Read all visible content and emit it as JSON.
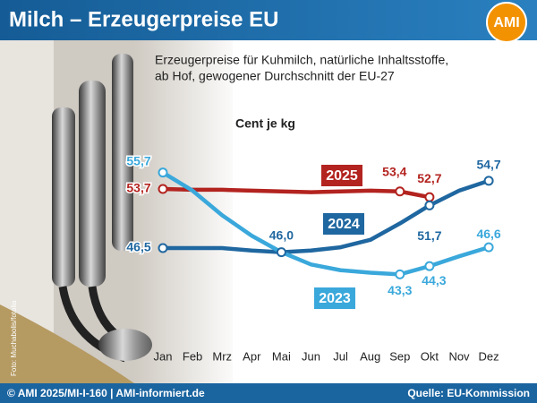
{
  "chart_data": {
    "type": "line",
    "title": "Milch – Erzeugerpreise EU",
    "logo": "AMI",
    "subtitle": [
      "Erzeugerpreise für Kuhmilch, natürliche Inhaltsstoffe,",
      "ab Hof, gewogener Durchschnitt der EU-27"
    ],
    "unit_label": "Cent je kg",
    "photo_credit": "Foto: Muchabolis/fotolia",
    "footer_left": "© AMI 2025/MI-I-160 | AMI-informiert.de",
    "footer_right": "Quelle: EU-Kommission",
    "categories": [
      "Jan",
      "Feb",
      "Mrz",
      "Apr",
      "Mai",
      "Jun",
      "Jul",
      "Aug",
      "Sep",
      "Okt",
      "Nov",
      "Dez"
    ],
    "ylim": [
      40,
      58
    ],
    "series": [
      {
        "name": "2025",
        "color": "#b3231f",
        "values": [
          53.7,
          53.6,
          53.6,
          53.5,
          53.4,
          53.3,
          53.4,
          53.5,
          53.4,
          52.7,
          null,
          null
        ],
        "value_labels": [
          "53,7",
          null,
          null,
          null,
          null,
          null,
          null,
          null,
          "53,4",
          "52,7",
          null,
          null
        ]
      },
      {
        "name": "2024",
        "color": "#1f67a0",
        "values": [
          46.5,
          46.5,
          46.5,
          46.2,
          46.0,
          46.2,
          46.6,
          47.5,
          49.5,
          51.7,
          53.5,
          54.7
        ],
        "value_labels": [
          "46,5",
          null,
          null,
          null,
          "46,0",
          null,
          null,
          null,
          null,
          "51,7",
          null,
          "54,7"
        ]
      },
      {
        "name": "2023",
        "color": "#3aa8db",
        "values": [
          55.7,
          53.5,
          50.5,
          48.0,
          46.0,
          44.5,
          43.8,
          43.5,
          43.3,
          44.3,
          45.5,
          46.6
        ],
        "value_labels": [
          "55,7",
          null,
          null,
          null,
          null,
          null,
          null,
          null,
          "43,3",
          "44,3",
          null,
          "46,6"
        ]
      }
    ]
  }
}
